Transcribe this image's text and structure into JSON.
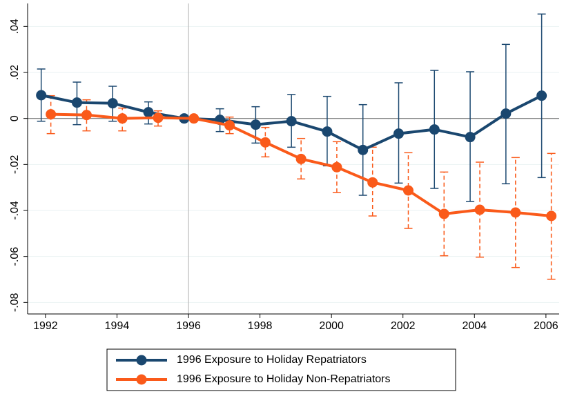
{
  "chart_data": {
    "type": "line",
    "xlim": [
      1991.5,
      2006.37
    ],
    "xticks": [
      1992,
      1994,
      1996,
      1998,
      2000,
      2002,
      2004,
      2006
    ],
    "ylim": [
      -0.085,
      0.05
    ],
    "yticks": [
      {
        "value": -0.08,
        "label": "-.08"
      },
      {
        "value": -0.06,
        "label": "-.06"
      },
      {
        "value": -0.04,
        "label": "-.04"
      },
      {
        "value": -0.02,
        "label": "-.02"
      },
      0,
      {
        "value": 0.02,
        "label": ".02"
      },
      {
        "value": 0.04,
        "label": ".04"
      }
    ],
    "grid": true,
    "hline": 0,
    "vline": 1996,
    "legend": "bottom",
    "series": [
      {
        "name": "1996 Exposure to Holiday Repatriators",
        "color": "#1a476f",
        "error_style": "solid",
        "x": [
          1991.88,
          1992.88,
          1993.88,
          1994.88,
          1995.88,
          1996.88,
          1997.88,
          1998.88,
          1999.88,
          2000.88,
          2001.88,
          2002.88,
          2003.88,
          2004.88,
          2005.88
        ],
        "values": [
          0.0101,
          0.0069,
          0.0066,
          0.0027,
          0,
          -0.0006,
          -0.0027,
          -0.0012,
          -0.0057,
          -0.0137,
          -0.0066,
          -0.0048,
          -0.0081,
          0.0021,
          0.0099
        ],
        "lower": [
          -0.0012,
          -0.0027,
          -0.0012,
          -0.0024,
          0,
          -0.0057,
          -0.0107,
          -0.0125,
          -0.0206,
          -0.0334,
          -0.0281,
          -0.0304,
          -0.0361,
          -0.0284,
          -0.0257
        ],
        "upper": [
          0.0215,
          0.0158,
          0.014,
          0.0072,
          0,
          0.0042,
          0.0051,
          0.0104,
          0.0096,
          0.006,
          0.0155,
          0.0209,
          0.0203,
          0.0322,
          0.0454
        ]
      },
      {
        "name": "1996 Exposure to Holiday Non-Repatriators",
        "color": "#fa5a1a",
        "error_style": "dashed",
        "x": [
          1992.15,
          1993.15,
          1994.15,
          1995.15,
          1996.15,
          1997.15,
          1998.15,
          1999.15,
          2000.15,
          2001.15,
          2002.15,
          2003.15,
          2004.15,
          2005.15,
          2006.15
        ],
        "values": [
          0.0018,
          0.0015,
          0,
          0.0003,
          0,
          -0.003,
          -0.0104,
          -0.0176,
          -0.0212,
          -0.0278,
          -0.0313,
          -0.0415,
          -0.0397,
          -0.0409,
          -0.0424
        ],
        "lower": [
          -0.0066,
          -0.0054,
          -0.0054,
          -0.0033,
          0,
          -0.0066,
          -0.0167,
          -0.0263,
          -0.0322,
          -0.0424,
          -0.0478,
          -0.0597,
          -0.0603,
          -0.0648,
          -0.0699
        ],
        "upper": [
          0.0099,
          0.0081,
          0.0045,
          0.0033,
          0,
          0.0006,
          -0.0039,
          -0.0087,
          -0.0101,
          -0.0125,
          -0.0149,
          -0.0233,
          -0.019,
          -0.017,
          -0.0152
        ]
      }
    ]
  }
}
